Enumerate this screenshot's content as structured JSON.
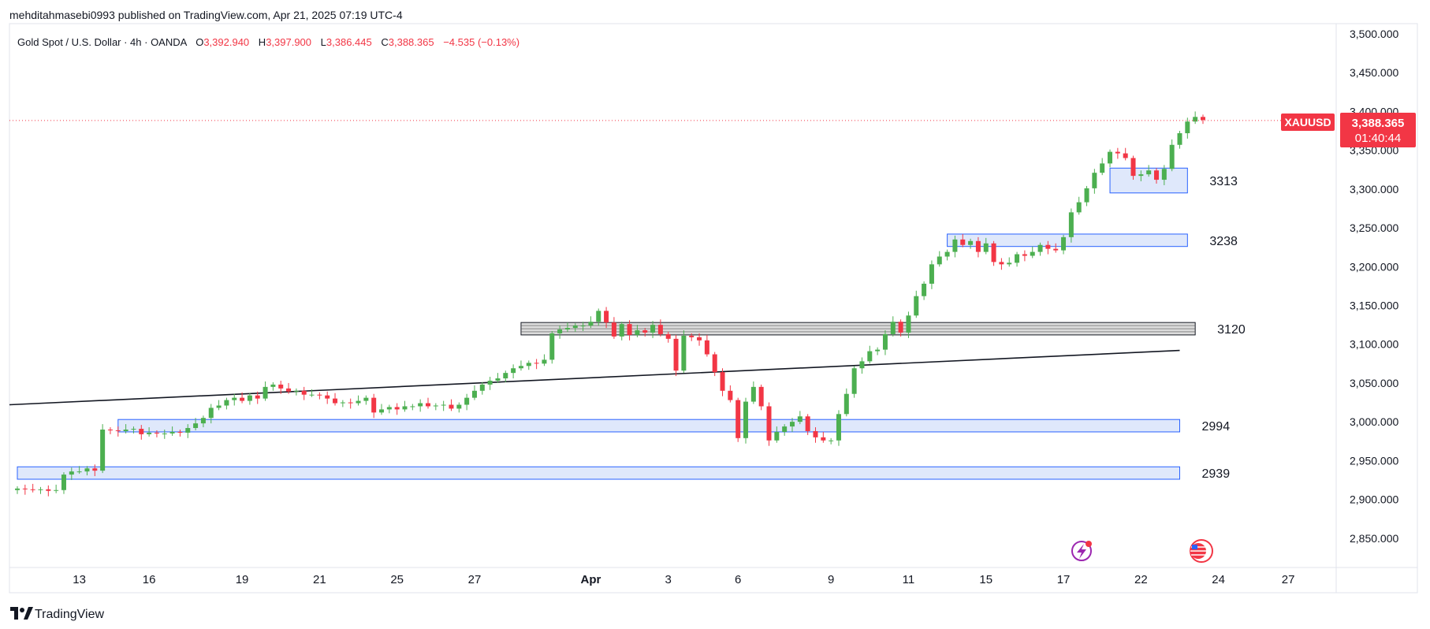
{
  "header": {
    "publish_line": "mehditahmasebi0993 published on TradingView.com, Apr 21, 2025 07:19 UTC-4"
  },
  "legend": {
    "instrument": "Gold Spot / U.S. Dollar · 4h · OANDA",
    "o_label": "O",
    "o_value": "3,392.940",
    "h_label": "H",
    "h_value": "3,397.900",
    "l_label": "L",
    "l_value": "3,386.445",
    "c_label": "C",
    "c_value": "3,388.365",
    "change": "−4.535 (−0.13%)"
  },
  "price_tag": {
    "symbol": "XAUUSD",
    "price": "3,388.365",
    "countdown": "01:40:44"
  },
  "footer": {
    "brand": "TradingView"
  },
  "colors": {
    "up": "#089981",
    "up_body": "#4caf50",
    "down": "#f23645",
    "zone_fill": "#dbe6fb",
    "zone_stroke": "#2962ff",
    "grey_zone_fill": "#d6d6d6",
    "price_line": "#f23645",
    "axis_text": "#131722"
  },
  "chart_data": {
    "type": "candlestick",
    "title": "Gold Spot / U.S. Dollar · 4h · OANDA",
    "timeframe": "4h",
    "ylim": [
      2820,
      3520
    ],
    "y_ticks": [
      2850,
      2900,
      2950,
      3000,
      3050,
      3100,
      3150,
      3200,
      3250,
      3300,
      3350,
      3400,
      3450,
      3500
    ],
    "y_tick_labels": [
      "2,850.000",
      "2,900.000",
      "2,950.000",
      "3,000.000",
      "3,050.000",
      "3,100.000",
      "3,150.000",
      "3,200.000",
      "3,250.000",
      "3,300.000",
      "3,350.000",
      "3,400.000",
      "3,450.000",
      "3,500.000"
    ],
    "x_ticks": [
      {
        "label": "13",
        "bar": 8
      },
      {
        "label": "16",
        "bar": 17
      },
      {
        "label": "19",
        "bar": 29
      },
      {
        "label": "21",
        "bar": 39
      },
      {
        "label": "25",
        "bar": 49
      },
      {
        "label": "27",
        "bar": 59
      },
      {
        "label": "Apr",
        "bar": 74,
        "bold": true
      },
      {
        "label": "3",
        "bar": 84
      },
      {
        "label": "6",
        "bar": 93
      },
      {
        "label": "9",
        "bar": 105
      },
      {
        "label": "11",
        "bar": 115
      },
      {
        "label": "15",
        "bar": 125
      },
      {
        "label": "17",
        "bar": 135
      },
      {
        "label": "22",
        "bar": 145
      },
      {
        "label": "24",
        "bar": 155
      },
      {
        "label": "27",
        "bar": 164
      }
    ],
    "closes": [
      2914,
      2913,
      2912,
      2913,
      2911,
      2912,
      2932,
      2936,
      2936,
      2940,
      2937,
      2990,
      2989,
      2988,
      2990,
      2991,
      2984,
      2986,
      2985,
      2985,
      2987,
      2986,
      2992,
      2998,
      3005,
      3018,
      3021,
      3028,
      3031,
      3027,
      3034,
      3030,
      3045,
      3048,
      3043,
      3039,
      3040,
      3035,
      3035,
      3034,
      3030,
      3024,
      3025,
      3024,
      3027,
      3031,
      3012,
      3016,
      3019,
      3016,
      3020,
      3020,
      3024,
      3020,
      3021,
      3022,
      3017,
      3022,
      3031,
      3040,
      3048,
      3053,
      3056,
      3063,
      3069,
      3072,
      3076,
      3075,
      3080,
      3114,
      3119,
      3121,
      3124,
      3124,
      3129,
      3143,
      3128,
      3110,
      3126,
      3112,
      3118,
      3115,
      3125,
      3113,
      3107,
      3066,
      3111,
      3109,
      3105,
      3087,
      3064,
      3040,
      3028,
      2979,
      3026,
      3045,
      3020,
      2976,
      2987,
      2994,
      3000,
      3007,
      2988,
      2980,
      2976,
      2976,
      3010,
      3036,
      3069,
      3078,
      3091,
      3093,
      3113,
      3129,
      3115,
      3137,
      3162,
      3178,
      3203,
      3213,
      3219,
      3235,
      3228,
      3233,
      3219,
      3230,
      3206,
      3203,
      3205,
      3216,
      3214,
      3219,
      3228,
      3223,
      3221,
      3238,
      3270,
      3283,
      3301,
      3321,
      3333,
      3348,
      3346,
      3340,
      3317,
      3319,
      3324,
      3312,
      3326,
      3357,
      3372,
      3387,
      3393,
      3389
    ],
    "annotations": [
      {
        "type": "zone",
        "label": "3313",
        "low": 3295,
        "high": 3327,
        "from_bar": 141,
        "to_bar": 151
      },
      {
        "type": "zone",
        "label": "3238",
        "low": 3226,
        "high": 3242,
        "from_bar": 120,
        "to_bar": 151
      },
      {
        "type": "zone",
        "label": "3120",
        "low": 3112,
        "high": 3128,
        "from_bar": 65,
        "to_bar": 152,
        "style": "grey"
      },
      {
        "type": "zone",
        "label": "2994",
        "low": 2987,
        "high": 3003,
        "from_bar": 13,
        "to_bar": 150
      },
      {
        "type": "zone",
        "label": "2939",
        "low": 2926,
        "high": 2942,
        "from_bar": 0,
        "to_bar": 150
      },
      {
        "type": "trendline",
        "from_bar": 0,
        "from_price": 3022,
        "to_bar": 150,
        "to_price": 3092
      }
    ],
    "last_price": 3388.365
  }
}
